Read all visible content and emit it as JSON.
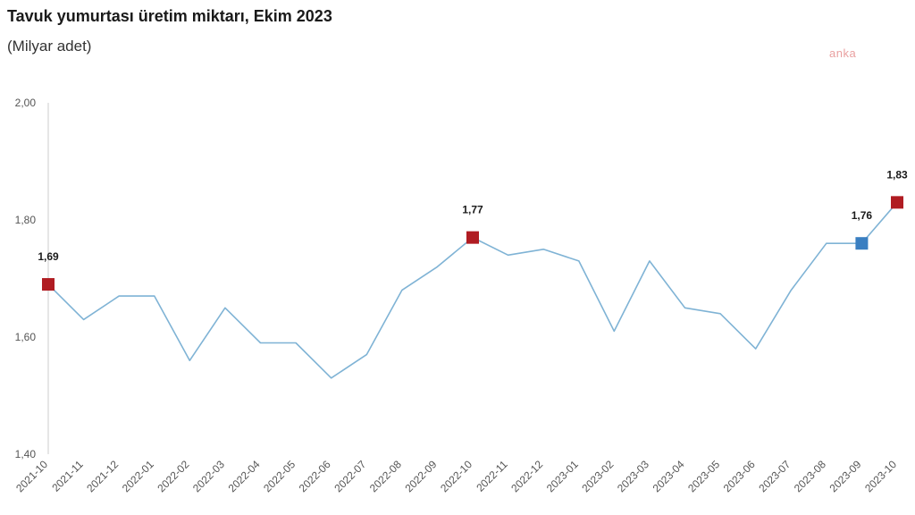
{
  "title": "Tavuk yumurtası üretim miktarı, Ekim 2023",
  "subtitle": "(Milyar adet)",
  "watermark": "anka",
  "chart_data": {
    "type": "line",
    "title": "Tavuk yumurtası üretim miktarı, Ekim 2023",
    "subtitle": "(Milyar adet)",
    "xlabel": "",
    "ylabel": "",
    "ylim": [
      1.4,
      2.0
    ],
    "yticks": [
      "1,40",
      "1,60",
      "1,80",
      "2,00"
    ],
    "ytick_values": [
      1.4,
      1.6,
      1.8,
      2.0
    ],
    "grid": false,
    "categories": [
      "2021-10",
      "2021-11",
      "2021-12",
      "2022-01",
      "2022-02",
      "2022-03",
      "2022-04",
      "2022-05",
      "2022-06",
      "2022-07",
      "2022-08",
      "2022-09",
      "2022-10",
      "2022-11",
      "2022-12",
      "2023-01",
      "2023-02",
      "2023-03",
      "2023-04",
      "2023-05",
      "2023-06",
      "2023-07",
      "2023-08",
      "2023-09",
      "2023-10"
    ],
    "series": [
      {
        "values": [
          1.69,
          1.63,
          1.67,
          1.67,
          1.56,
          1.65,
          1.59,
          1.59,
          1.53,
          1.57,
          1.68,
          1.72,
          1.77,
          1.74,
          1.75,
          1.73,
          1.61,
          1.73,
          1.65,
          1.64,
          1.58,
          1.68,
          1.76,
          1.76,
          1.83
        ],
        "color": "#7fb3d5"
      }
    ],
    "highlights": [
      {
        "category": "2021-10",
        "value": 1.69,
        "label": "1,69",
        "color": "#b01c22"
      },
      {
        "category": "2022-10",
        "value": 1.77,
        "label": "1,77",
        "color": "#b01c22"
      },
      {
        "category": "2023-09",
        "value": 1.76,
        "label": "1,76",
        "color": "#3a7fc1"
      },
      {
        "category": "2023-10",
        "value": 1.83,
        "label": "1,83",
        "color": "#b01c22"
      }
    ]
  }
}
